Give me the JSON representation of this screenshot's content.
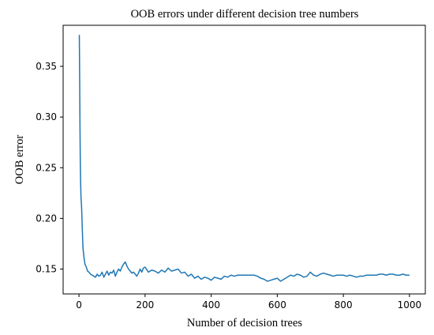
{
  "chart_data": {
    "type": "line",
    "title": "OOB errors under different decision tree numbers",
    "xlabel": "Number of decision trees",
    "ylabel": "OOB error",
    "xlim": [
      -48,
      1048
    ],
    "ylim": [
      0.1255,
      0.3905
    ],
    "x_ticks": [
      0,
      200,
      400,
      600,
      800,
      1000
    ],
    "x_tick_labels": [
      "0",
      "200",
      "400",
      "600",
      "800",
      "1000"
    ],
    "y_ticks": [
      0.15,
      0.2,
      0.25,
      0.3,
      0.35
    ],
    "y_tick_labels": [
      "0.15",
      "0.20",
      "0.25",
      "0.30",
      "0.35"
    ],
    "grid": false,
    "series": [
      {
        "color": "#1f77b4",
        "x": [
          1,
          2,
          3,
          4,
          5,
          6,
          8,
          10,
          12,
          15,
          18,
          22,
          26,
          30,
          35,
          40,
          45,
          50,
          55,
          60,
          65,
          70,
          75,
          80,
          85,
          90,
          95,
          100,
          105,
          110,
          115,
          120,
          125,
          130,
          135,
          140,
          145,
          150,
          155,
          160,
          165,
          170,
          175,
          180,
          185,
          190,
          195,
          200,
          210,
          220,
          230,
          240,
          250,
          260,
          270,
          280,
          290,
          300,
          310,
          320,
          330,
          340,
          350,
          360,
          370,
          380,
          390,
          400,
          410,
          420,
          430,
          440,
          450,
          460,
          470,
          480,
          490,
          500,
          510,
          520,
          530,
          540,
          550,
          560,
          570,
          580,
          590,
          600,
          610,
          620,
          630,
          640,
          650,
          660,
          670,
          680,
          690,
          700,
          710,
          720,
          730,
          740,
          750,
          760,
          770,
          780,
          790,
          800,
          810,
          820,
          830,
          840,
          850,
          860,
          870,
          880,
          890,
          900,
          910,
          920,
          930,
          940,
          950,
          960,
          970,
          980,
          990,
          1000
        ],
        "y": [
          0.381,
          0.34,
          0.29,
          0.255,
          0.235,
          0.222,
          0.21,
          0.19,
          0.171,
          0.162,
          0.155,
          0.152,
          0.148,
          0.147,
          0.145,
          0.144,
          0.143,
          0.142,
          0.145,
          0.143,
          0.144,
          0.147,
          0.142,
          0.145,
          0.148,
          0.144,
          0.147,
          0.146,
          0.149,
          0.143,
          0.147,
          0.15,
          0.148,
          0.152,
          0.155,
          0.157,
          0.153,
          0.15,
          0.148,
          0.146,
          0.147,
          0.145,
          0.143,
          0.146,
          0.15,
          0.147,
          0.151,
          0.152,
          0.147,
          0.149,
          0.148,
          0.146,
          0.149,
          0.147,
          0.151,
          0.148,
          0.149,
          0.15,
          0.146,
          0.147,
          0.143,
          0.145,
          0.141,
          0.143,
          0.14,
          0.142,
          0.141,
          0.139,
          0.142,
          0.141,
          0.14,
          0.143,
          0.142,
          0.144,
          0.143,
          0.144,
          0.144,
          0.144,
          0.144,
          0.144,
          0.144,
          0.143,
          0.141,
          0.14,
          0.138,
          0.139,
          0.14,
          0.141,
          0.138,
          0.14,
          0.142,
          0.144,
          0.143,
          0.145,
          0.144,
          0.142,
          0.143,
          0.147,
          0.144,
          0.143,
          0.145,
          0.146,
          0.145,
          0.144,
          0.143,
          0.144,
          0.144,
          0.144,
          0.143,
          0.144,
          0.143,
          0.142,
          0.143,
          0.143,
          0.144,
          0.144,
          0.144,
          0.144,
          0.145,
          0.145,
          0.144,
          0.145,
          0.145,
          0.144,
          0.144,
          0.145,
          0.144,
          0.144
        ]
      }
    ]
  }
}
